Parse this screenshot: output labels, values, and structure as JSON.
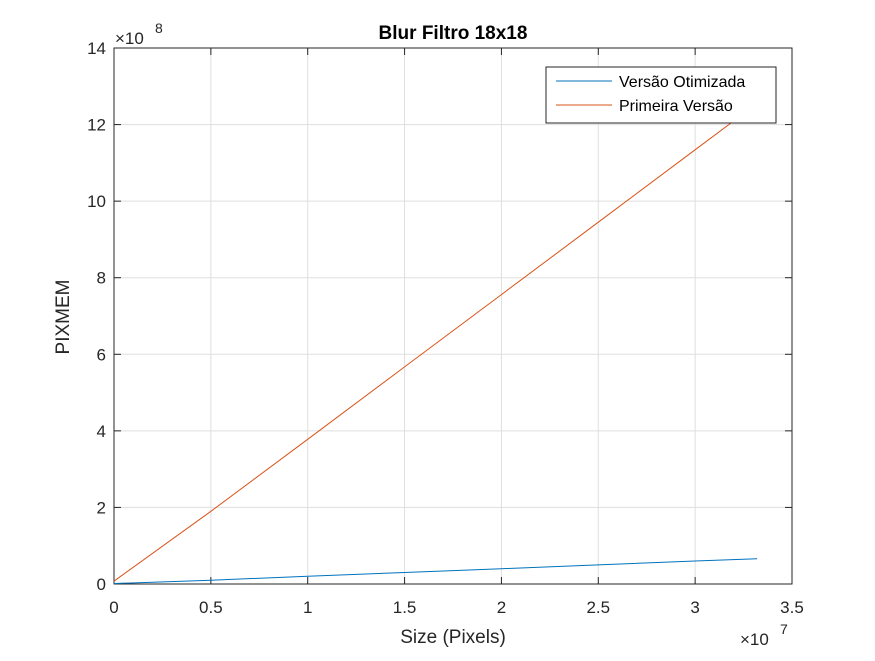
{
  "chart_data": {
    "type": "line",
    "title": "Blur Filtro 18x18",
    "xlabel": "Size (Pixels)",
    "ylabel": "PIXMEM",
    "xlim": [
      0,
      3.5
    ],
    "ylim": [
      0,
      14
    ],
    "x_multiplier_label": "×10",
    "x_multiplier_exponent": "7",
    "y_multiplier_label": "×10",
    "y_multiplier_exponent": "8",
    "xticks": [
      0,
      0.5,
      1,
      1.5,
      2,
      2.5,
      3,
      3.5
    ],
    "xtick_labels": [
      "0",
      "0.5",
      "1",
      "1.5",
      "2",
      "2.5",
      "3",
      "3.5"
    ],
    "yticks": [
      0,
      2,
      4,
      6,
      8,
      10,
      12,
      14
    ],
    "ytick_labels": [
      "0",
      "2",
      "4",
      "6",
      "8",
      "10",
      "12",
      "14"
    ],
    "grid": true,
    "legend_position": "top-right",
    "series": [
      {
        "name": "Versão Otimizada",
        "color": "#0072BD",
        "x": [
          0,
          0.0066,
          0.5,
          1,
          1.5,
          2,
          2.5,
          3,
          3.32
        ],
        "y": [
          0,
          0.013,
          0.1,
          0.2,
          0.3,
          0.4,
          0.5,
          0.6,
          0.66
        ]
      },
      {
        "name": "Primeira Versão",
        "color": "#D95319",
        "x": [
          0,
          0.0066,
          0.5,
          1,
          1.5,
          2,
          2.5,
          3,
          3.32
        ],
        "y": [
          0.08,
          0.1,
          1.9,
          3.78,
          5.67,
          7.56,
          9.45,
          11.34,
          12.55
        ]
      }
    ]
  }
}
